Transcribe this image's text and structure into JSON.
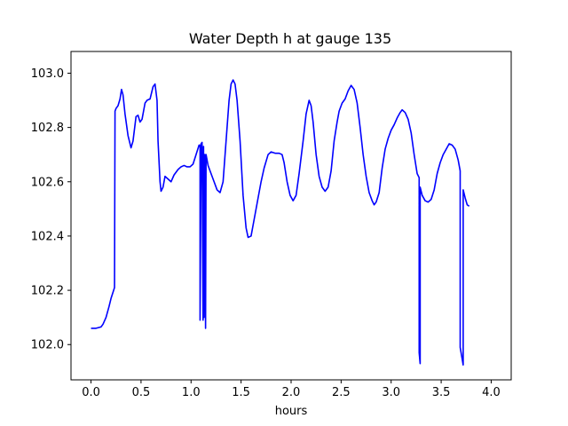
{
  "chart_data": {
    "type": "line",
    "title": "Water Depth h at gauge 135",
    "xlabel": "hours",
    "ylabel": "",
    "xlim": [
      -0.2,
      4.2
    ],
    "ylim": [
      101.87,
      103.08
    ],
    "x_ticks": [
      0.0,
      0.5,
      1.0,
      1.5,
      2.0,
      2.5,
      3.0,
      3.5,
      4.0
    ],
    "x_tick_labels": [
      "0.0",
      "0.5",
      "1.0",
      "1.5",
      "2.0",
      "2.5",
      "3.0",
      "3.5",
      "4.0"
    ],
    "y_ticks": [
      102.0,
      102.2,
      102.4,
      102.6,
      102.8,
      103.0
    ],
    "y_tick_labels": [
      "102.0",
      "102.2",
      "102.4",
      "102.6",
      "102.8",
      "103.0"
    ],
    "grid": false,
    "series": [
      {
        "color": "#0000ff",
        "points": [
          [
            0.0,
            102.06
          ],
          [
            0.05,
            102.06
          ],
          [
            0.1,
            102.065
          ],
          [
            0.12,
            102.075
          ],
          [
            0.15,
            102.1
          ],
          [
            0.18,
            102.14
          ],
          [
            0.2,
            102.17
          ],
          [
            0.235,
            102.21
          ],
          [
            0.24,
            102.86
          ],
          [
            0.25,
            102.87
          ],
          [
            0.27,
            102.88
          ],
          [
            0.29,
            102.905
          ],
          [
            0.305,
            102.94
          ],
          [
            0.32,
            102.92
          ],
          [
            0.34,
            102.85
          ],
          [
            0.37,
            102.77
          ],
          [
            0.4,
            102.725
          ],
          [
            0.42,
            102.75
          ],
          [
            0.45,
            102.84
          ],
          [
            0.47,
            102.845
          ],
          [
            0.49,
            102.82
          ],
          [
            0.51,
            102.83
          ],
          [
            0.54,
            102.89
          ],
          [
            0.56,
            102.9
          ],
          [
            0.59,
            102.905
          ],
          [
            0.62,
            102.95
          ],
          [
            0.64,
            102.96
          ],
          [
            0.66,
            102.9
          ],
          [
            0.67,
            102.75
          ],
          [
            0.69,
            102.6
          ],
          [
            0.7,
            102.565
          ],
          [
            0.72,
            102.58
          ],
          [
            0.74,
            102.62
          ],
          [
            0.77,
            102.61
          ],
          [
            0.8,
            102.6
          ],
          [
            0.83,
            102.625
          ],
          [
            0.87,
            102.645
          ],
          [
            0.9,
            102.655
          ],
          [
            0.93,
            102.66
          ],
          [
            0.96,
            102.655
          ],
          [
            0.99,
            102.655
          ],
          [
            1.02,
            102.665
          ],
          [
            1.05,
            102.7
          ],
          [
            1.08,
            102.735
          ],
          [
            1.09,
            102.735
          ],
          [
            1.09,
            102.09
          ],
          [
            1.1,
            102.74
          ],
          [
            1.11,
            102.745
          ],
          [
            1.12,
            102.09
          ],
          [
            1.125,
            102.73
          ],
          [
            1.13,
            102.1
          ],
          [
            1.135,
            102.7
          ],
          [
            1.14,
            102.7
          ],
          [
            1.145,
            102.06
          ],
          [
            1.15,
            102.7
          ],
          [
            1.17,
            102.66
          ],
          [
            1.2,
            102.63
          ],
          [
            1.23,
            102.6
          ],
          [
            1.26,
            102.57
          ],
          [
            1.29,
            102.56
          ],
          [
            1.32,
            102.6
          ],
          [
            1.35,
            102.75
          ],
          [
            1.38,
            102.9
          ],
          [
            1.4,
            102.96
          ],
          [
            1.42,
            102.975
          ],
          [
            1.44,
            102.96
          ],
          [
            1.46,
            102.9
          ],
          [
            1.49,
            102.75
          ],
          [
            1.52,
            102.55
          ],
          [
            1.55,
            102.43
          ],
          [
            1.57,
            102.395
          ],
          [
            1.6,
            102.4
          ],
          [
            1.63,
            102.46
          ],
          [
            1.66,
            102.52
          ],
          [
            1.7,
            102.6
          ],
          [
            1.73,
            102.65
          ],
          [
            1.77,
            102.7
          ],
          [
            1.8,
            102.71
          ],
          [
            1.84,
            102.705
          ],
          [
            1.88,
            102.705
          ],
          [
            1.91,
            102.7
          ],
          [
            1.93,
            102.67
          ],
          [
            1.96,
            102.6
          ],
          [
            1.99,
            102.55
          ],
          [
            2.02,
            102.53
          ],
          [
            2.05,
            102.55
          ],
          [
            2.08,
            102.63
          ],
          [
            2.12,
            102.75
          ],
          [
            2.15,
            102.85
          ],
          [
            2.18,
            102.9
          ],
          [
            2.2,
            102.88
          ],
          [
            2.22,
            102.82
          ],
          [
            2.25,
            102.7
          ],
          [
            2.28,
            102.62
          ],
          [
            2.31,
            102.58
          ],
          [
            2.34,
            102.565
          ],
          [
            2.37,
            102.58
          ],
          [
            2.4,
            102.64
          ],
          [
            2.43,
            102.75
          ],
          [
            2.46,
            102.82
          ],
          [
            2.48,
            102.86
          ],
          [
            2.51,
            102.89
          ],
          [
            2.54,
            102.905
          ],
          [
            2.57,
            102.935
          ],
          [
            2.6,
            102.955
          ],
          [
            2.63,
            102.94
          ],
          [
            2.66,
            102.89
          ],
          [
            2.69,
            102.8
          ],
          [
            2.72,
            102.7
          ],
          [
            2.75,
            102.62
          ],
          [
            2.78,
            102.56
          ],
          [
            2.81,
            102.53
          ],
          [
            2.83,
            102.515
          ],
          [
            2.85,
            102.525
          ],
          [
            2.88,
            102.56
          ],
          [
            2.91,
            102.65
          ],
          [
            2.94,
            102.72
          ],
          [
            2.97,
            102.76
          ],
          [
            3.0,
            102.79
          ],
          [
            3.03,
            102.81
          ],
          [
            3.06,
            102.835
          ],
          [
            3.09,
            102.855
          ],
          [
            3.11,
            102.865
          ],
          [
            3.14,
            102.855
          ],
          [
            3.17,
            102.83
          ],
          [
            3.2,
            102.78
          ],
          [
            3.23,
            102.7
          ],
          [
            3.26,
            102.63
          ],
          [
            3.28,
            102.615
          ],
          [
            3.28,
            101.97
          ],
          [
            3.29,
            101.93
          ],
          [
            3.29,
            102.58
          ],
          [
            3.31,
            102.55
          ],
          [
            3.34,
            102.53
          ],
          [
            3.37,
            102.525
          ],
          [
            3.4,
            102.535
          ],
          [
            3.43,
            102.57
          ],
          [
            3.46,
            102.63
          ],
          [
            3.49,
            102.67
          ],
          [
            3.52,
            102.7
          ],
          [
            3.55,
            102.72
          ],
          [
            3.58,
            102.74
          ],
          [
            3.61,
            102.735
          ],
          [
            3.64,
            102.72
          ],
          [
            3.67,
            102.68
          ],
          [
            3.69,
            102.64
          ],
          [
            3.69,
            101.99
          ],
          [
            3.72,
            101.925
          ],
          [
            3.72,
            102.57
          ],
          [
            3.74,
            102.54
          ],
          [
            3.76,
            102.515
          ],
          [
            3.78,
            102.51
          ]
        ]
      }
    ]
  }
}
